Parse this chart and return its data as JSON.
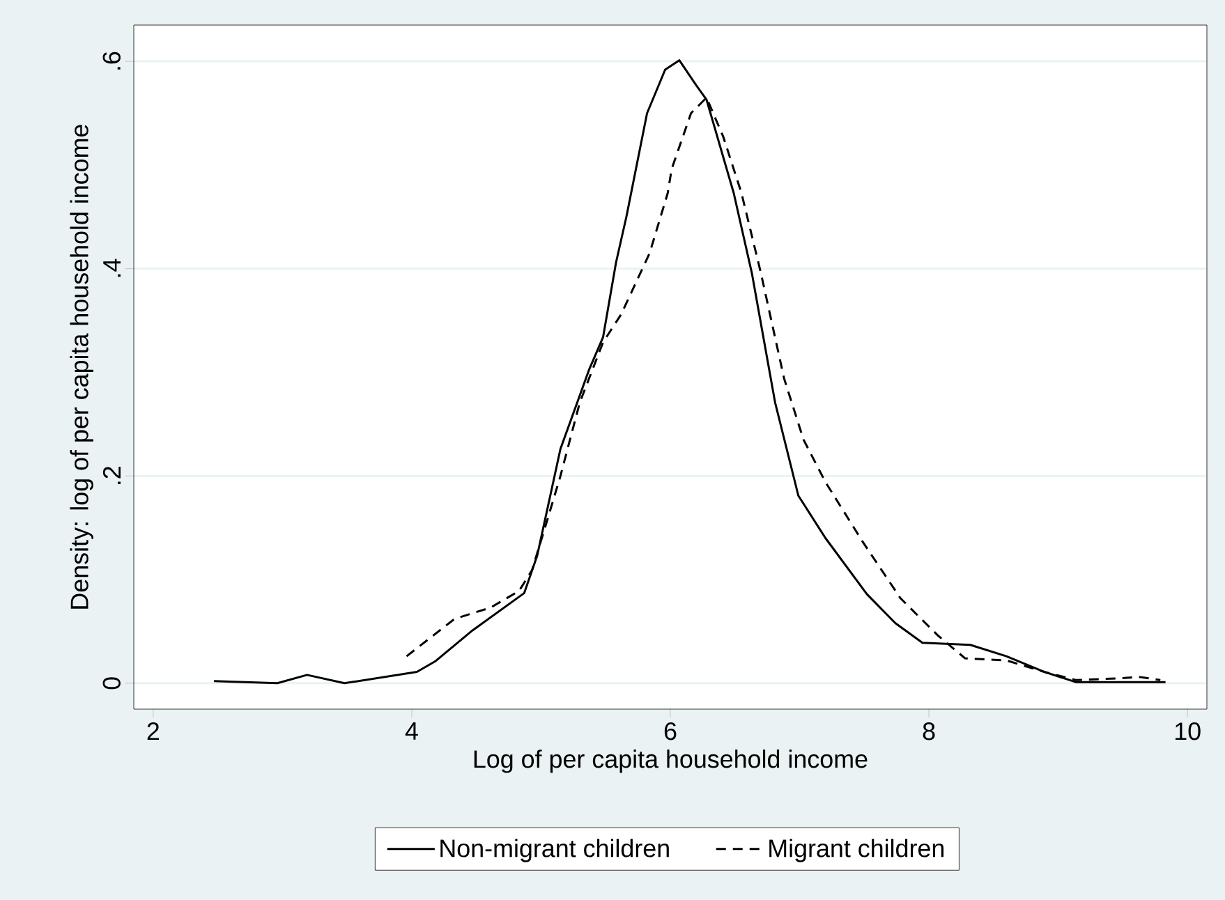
{
  "chart_data": {
    "type": "line",
    "xlabel": "Log of per capita household income",
    "ylabel": "Density: log of per capita household income",
    "xlim": [
      1.85,
      10.15
    ],
    "ylim": [
      -0.025,
      0.635
    ],
    "xticks": [
      2,
      4,
      6,
      8,
      10
    ],
    "yticks": [
      0,
      {
        "value": 0.2,
        "label": ".2"
      },
      {
        "value": 0.4,
        "label": ".4"
      },
      {
        "value": 0.6,
        "label": ".6"
      }
    ],
    "grid": "y",
    "legend": "bottom",
    "marker": "none",
    "series": [
      {
        "name": "Non-migrant children",
        "color": "#000000",
        "line_style": "solid",
        "x": [
          2.47,
          2.96,
          3.19,
          3.48,
          4.04,
          4.18,
          4.47,
          4.87,
          4.97,
          5.15,
          5.37,
          5.48,
          5.58,
          5.66,
          5.82,
          5.96,
          6.07,
          6.2,
          6.28,
          6.49,
          6.63,
          6.81,
          6.99,
          7.2,
          7.52,
          7.74,
          7.95,
          8.32,
          8.6,
          8.89,
          9.14,
          9.83
        ],
        "values": [
          0.002,
          0.0,
          0.008,
          0.0,
          0.011,
          0.021,
          0.051,
          0.087,
          0.123,
          0.226,
          0.302,
          0.334,
          0.406,
          0.45,
          0.55,
          0.592,
          0.601,
          0.577,
          0.563,
          0.473,
          0.396,
          0.271,
          0.181,
          0.14,
          0.086,
          0.058,
          0.039,
          0.037,
          0.026,
          0.011,
          0.001,
          0.001
        ]
      },
      {
        "name": "Migrant children",
        "color": "#000000",
        "line_style": "dashed",
        "x": [
          3.96,
          4.33,
          4.61,
          4.83,
          4.93,
          5.04,
          5.15,
          5.3,
          5.48,
          5.62,
          5.84,
          5.98,
          6.01,
          6.16,
          6.28,
          6.41,
          6.55,
          6.7,
          6.88,
          7.03,
          7.2,
          7.49,
          7.78,
          8.07,
          8.28,
          8.6,
          8.89,
          9.14,
          9.51,
          9.63,
          9.79
        ],
        "values": [
          0.026,
          0.062,
          0.073,
          0.089,
          0.109,
          0.154,
          0.2,
          0.271,
          0.329,
          0.356,
          0.415,
          0.473,
          0.496,
          0.55,
          0.565,
          0.527,
          0.473,
          0.396,
          0.294,
          0.235,
          0.194,
          0.136,
          0.082,
          0.046,
          0.024,
          0.022,
          0.011,
          0.003,
          0.005,
          0.006,
          0.003
        ]
      }
    ]
  }
}
